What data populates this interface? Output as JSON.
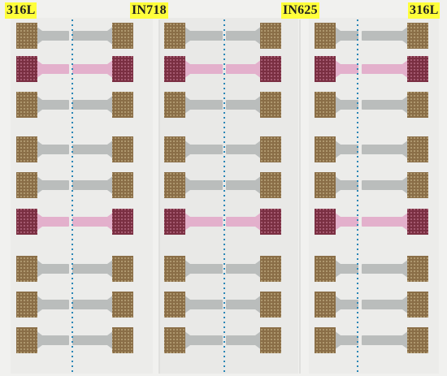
{
  "labels": {
    "left": "316L",
    "center_left": "IN718",
    "center_right": "IN625",
    "right": "316L"
  },
  "colors": {
    "label_background": "#ffff3b",
    "label_text": "#1f1f1f",
    "background": "#f1f1ef",
    "dashed_line": "#2a86b6",
    "lattice_brown": "#8b6f4a",
    "lattice_pink": "#8a3a4e",
    "specimen_gray": "#b9bcbb",
    "specimen_pink": "#e6b3d0"
  }
}
